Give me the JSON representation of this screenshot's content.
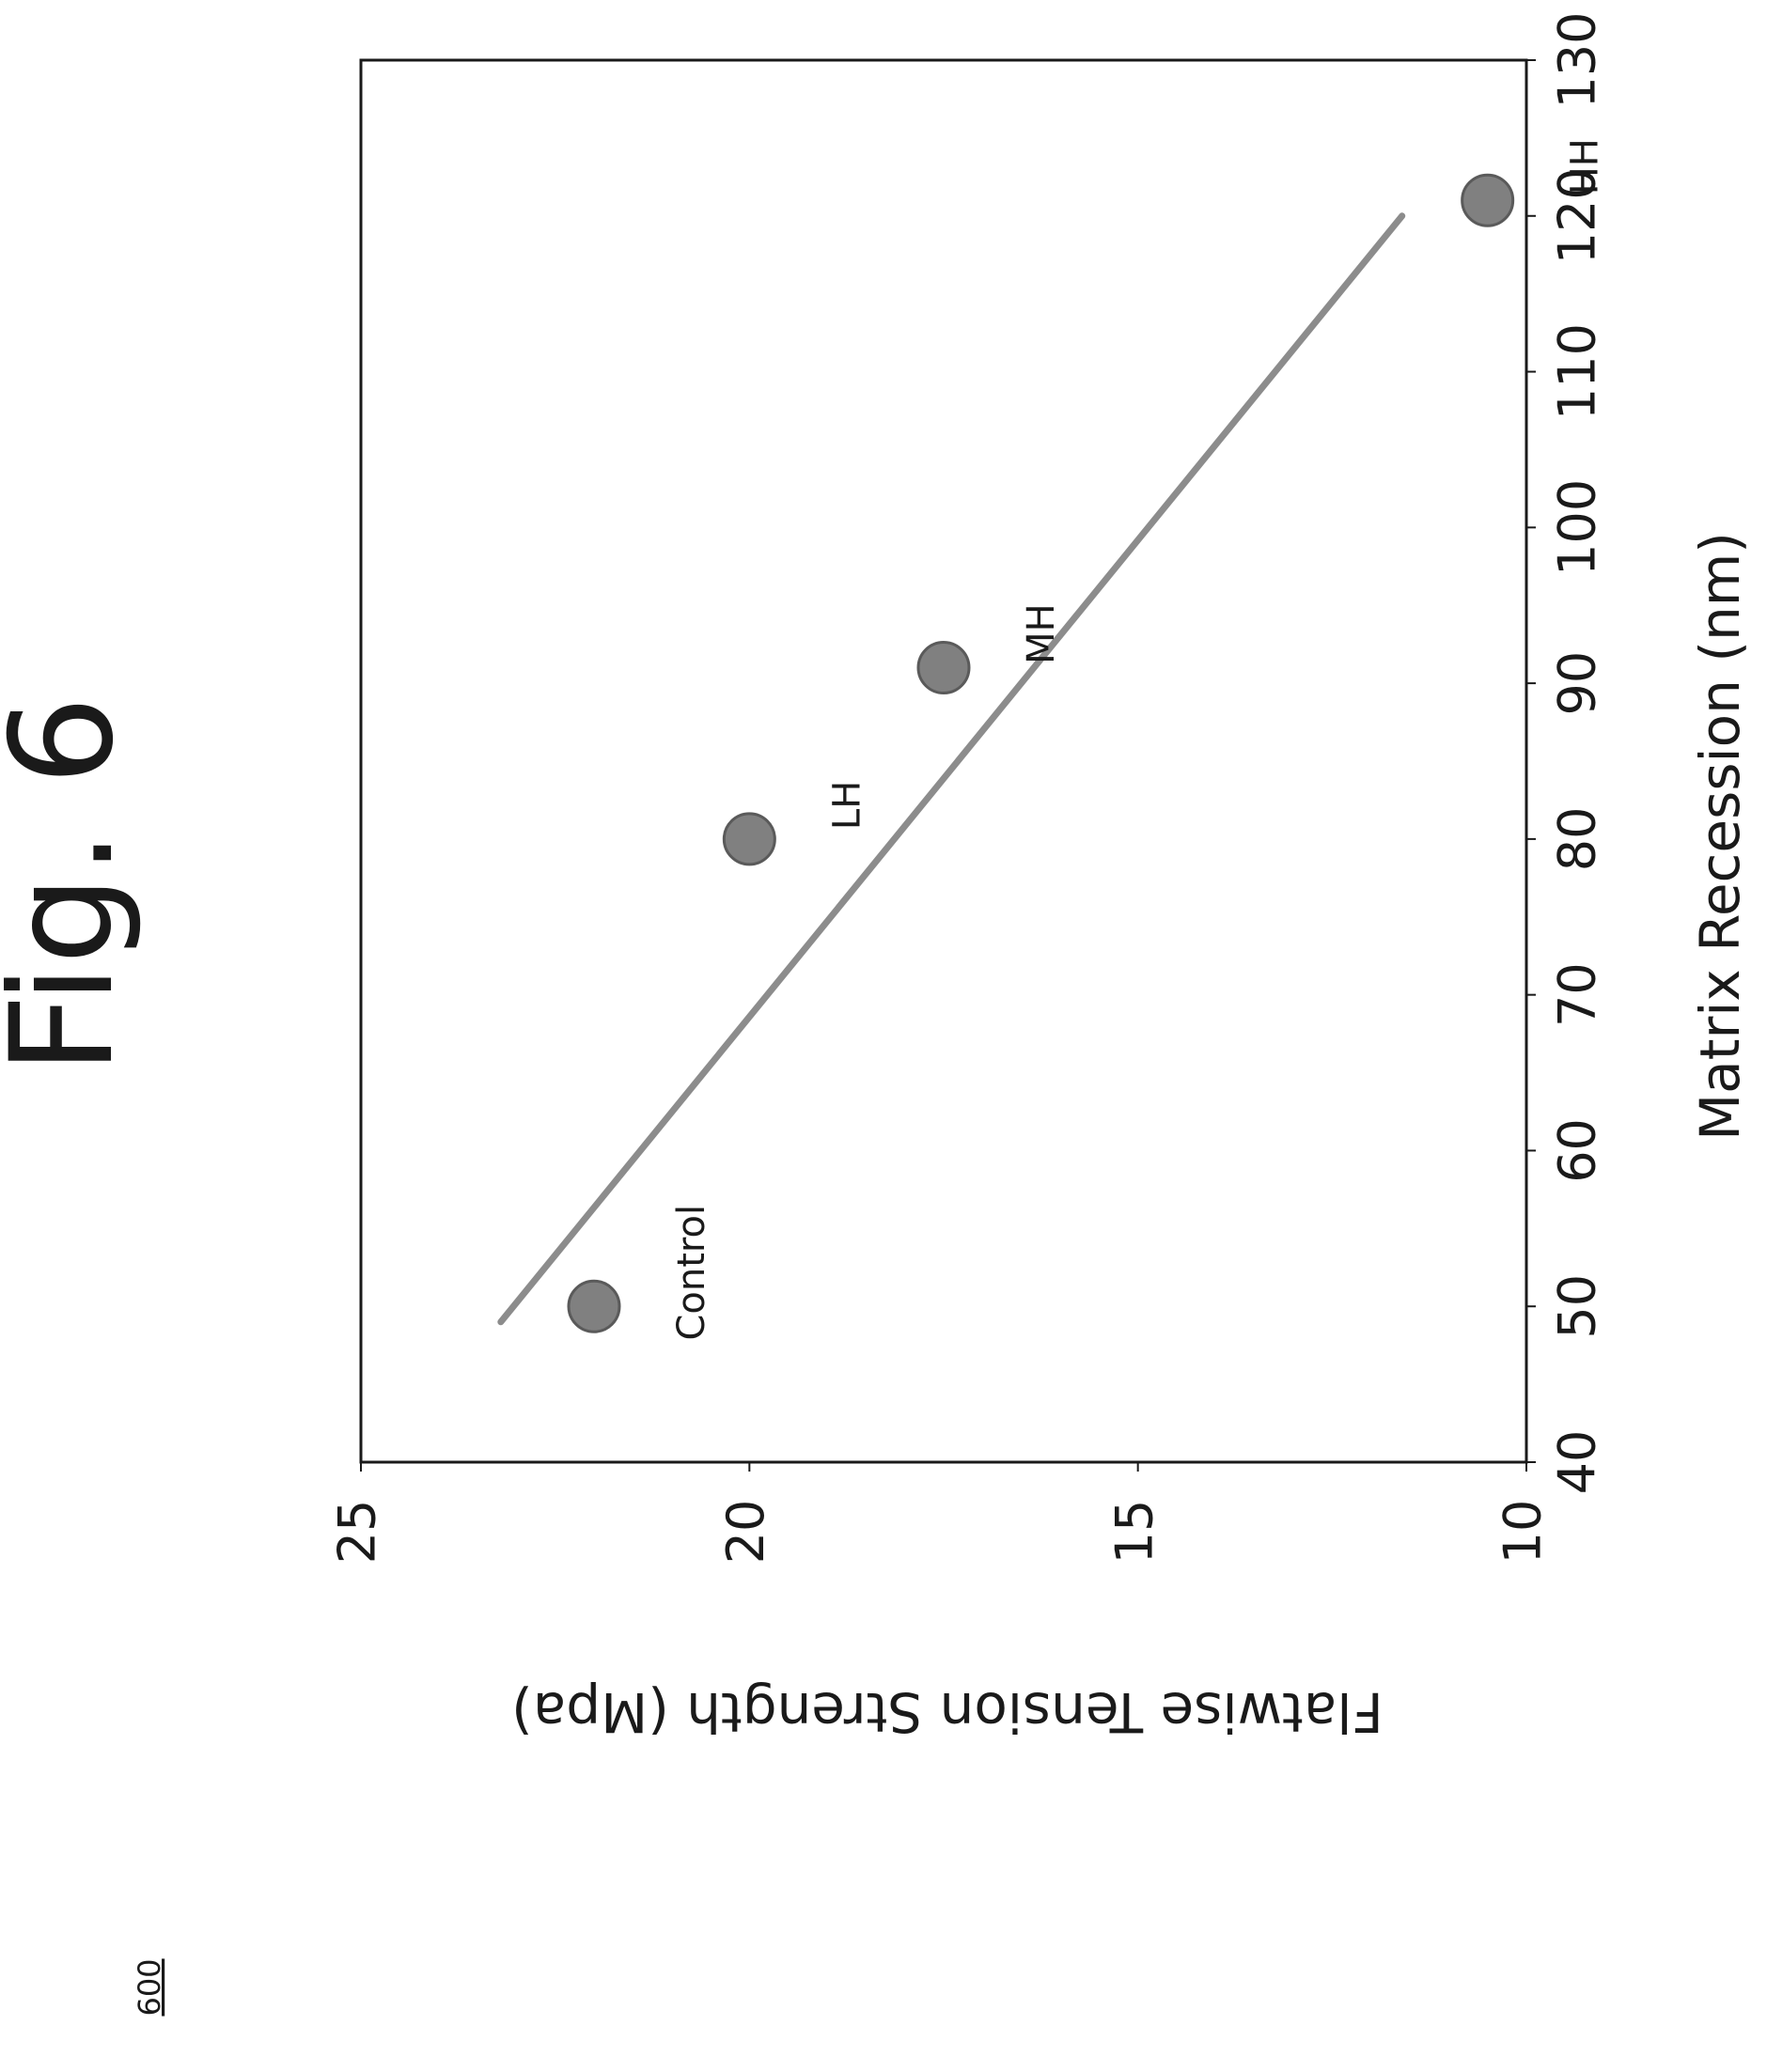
{
  "figure_label": "Fig. 6",
  "reference_numeral": "600",
  "colors": {
    "marker": "#808080",
    "marker_edge": "#5a5a5a",
    "trendline": "#8c8c8c",
    "frame": "#1a1a1a"
  },
  "chart_data": {
    "type": "scatter",
    "title": "",
    "xlabel": "Matrix Recession (nm)",
    "ylabel": "Flatwise Tension Strength (Mpa)",
    "xlim": [
      40,
      130
    ],
    "ylim": [
      10,
      25
    ],
    "xticks": [
      40,
      50,
      60,
      70,
      80,
      90,
      100,
      110,
      120,
      130
    ],
    "yticks": [
      10,
      15,
      20,
      25
    ],
    "grid": false,
    "legend": "none",
    "orientation": "rotated 90 degrees counter-clockwise on the page",
    "points": [
      {
        "label": "Control",
        "x": 50,
        "y": 22
      },
      {
        "label": "LH",
        "x": 80,
        "y": 20
      },
      {
        "label": "MH",
        "x": 91,
        "y": 17.5
      },
      {
        "label": "HH",
        "x": 121,
        "y": 10.5
      }
    ],
    "trendline": {
      "type": "linear",
      "x": [
        49,
        120
      ],
      "y": [
        23.2,
        11.6
      ]
    }
  }
}
